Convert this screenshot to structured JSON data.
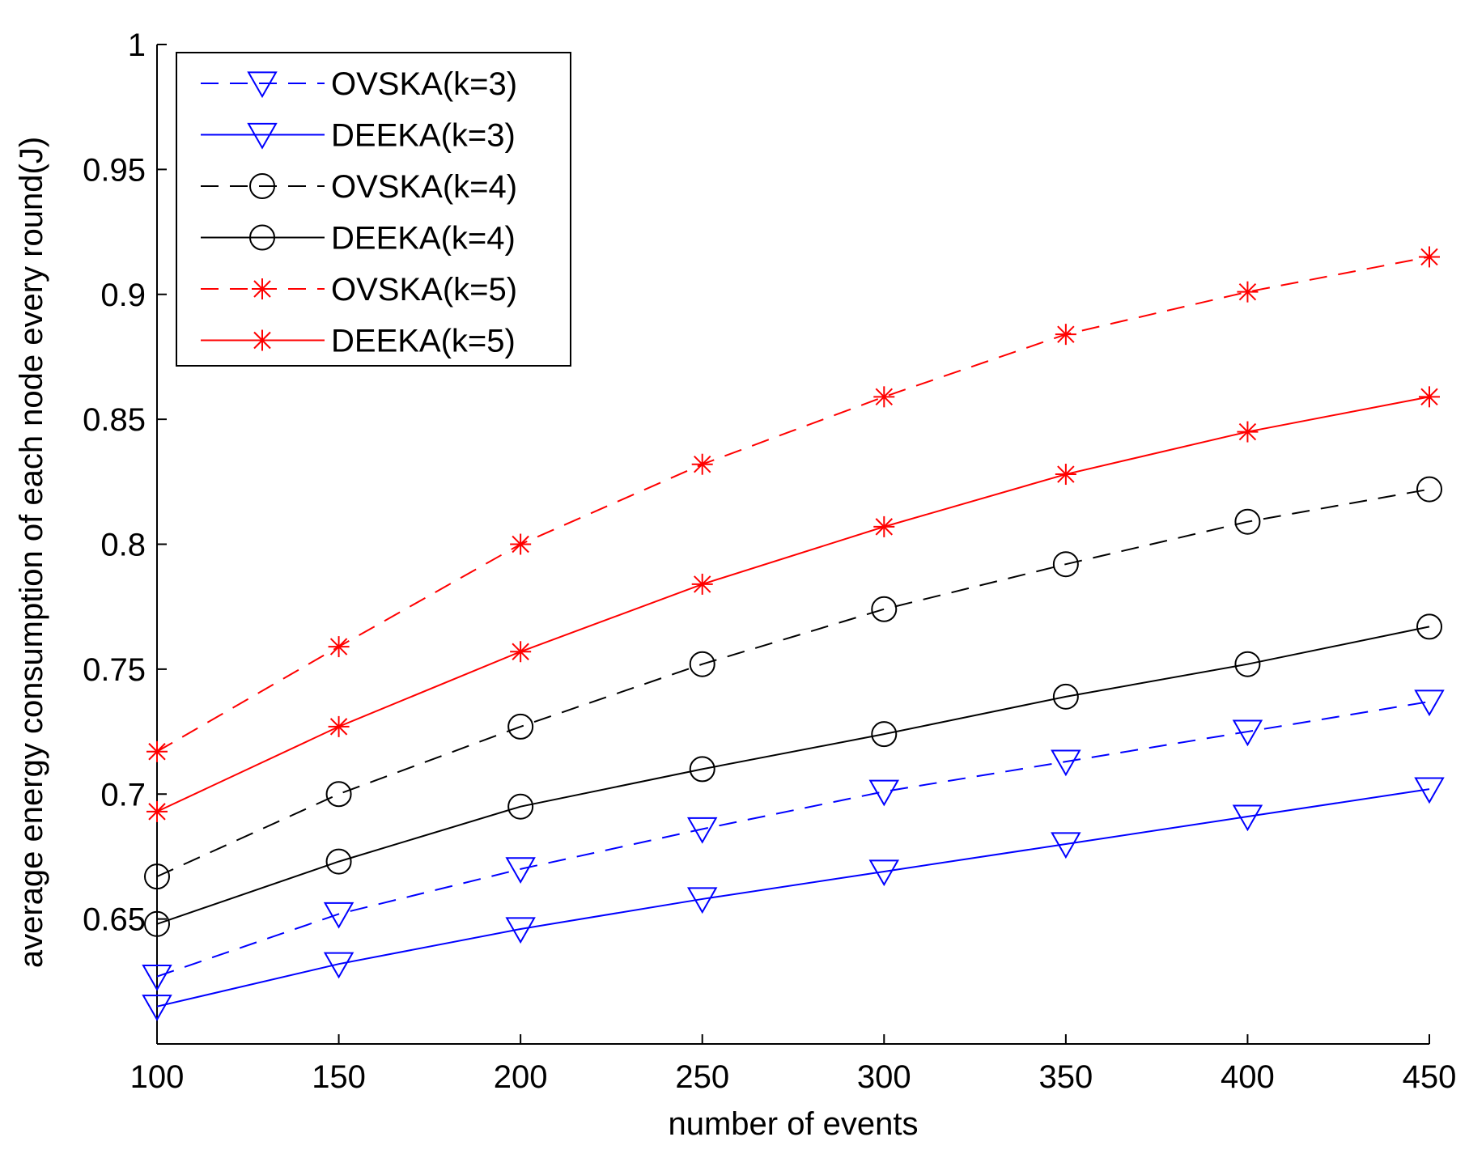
{
  "chart_data": {
    "type": "line",
    "title": "",
    "xlabel": "number of events",
    "ylabel": "average energy consumption of each node every round(J)",
    "x": [
      100,
      150,
      200,
      250,
      300,
      350,
      400,
      450
    ],
    "xlim": [
      100,
      450
    ],
    "ylim": [
      0.6,
      1.0
    ],
    "xticks": [
      "100",
      "150",
      "200",
      "250",
      "300",
      "350",
      "400",
      "450"
    ],
    "yticks": [
      "0.65",
      "0.7",
      "0.75",
      "0.8",
      "0.85",
      "0.9",
      "0.95",
      "1"
    ],
    "grid": false,
    "legend_position": "top-left",
    "series": [
      {
        "name": "OVSKA(k=3)",
        "color": "#0000ff",
        "style": "dashed",
        "marker": "triangle-down",
        "values": [
          0.627,
          0.652,
          0.67,
          0.686,
          0.701,
          0.713,
          0.725,
          0.737
        ]
      },
      {
        "name": "DEEKA(k=3)",
        "color": "#0000ff",
        "style": "solid",
        "marker": "triangle-down",
        "values": [
          0.615,
          0.632,
          0.646,
          0.658,
          0.669,
          0.68,
          0.691,
          0.702
        ]
      },
      {
        "name": "OVSKA(k=4)",
        "color": "#000000",
        "style": "dashed",
        "marker": "circle",
        "values": [
          0.667,
          0.7,
          0.727,
          0.752,
          0.774,
          0.792,
          0.809,
          0.822
        ]
      },
      {
        "name": "DEEKA(k=4)",
        "color": "#000000",
        "style": "solid",
        "marker": "circle",
        "values": [
          0.648,
          0.673,
          0.695,
          0.71,
          0.724,
          0.739,
          0.752,
          0.767
        ]
      },
      {
        "name": "OVSKA(k=5)",
        "color": "#ff0000",
        "style": "dashed",
        "marker": "star",
        "values": [
          0.717,
          0.759,
          0.8,
          0.832,
          0.859,
          0.884,
          0.901,
          0.915
        ]
      },
      {
        "name": "DEEKA(k=5)",
        "color": "#ff0000",
        "style": "solid",
        "marker": "star",
        "values": [
          0.693,
          0.727,
          0.757,
          0.784,
          0.807,
          0.828,
          0.845,
          0.859
        ]
      }
    ]
  }
}
